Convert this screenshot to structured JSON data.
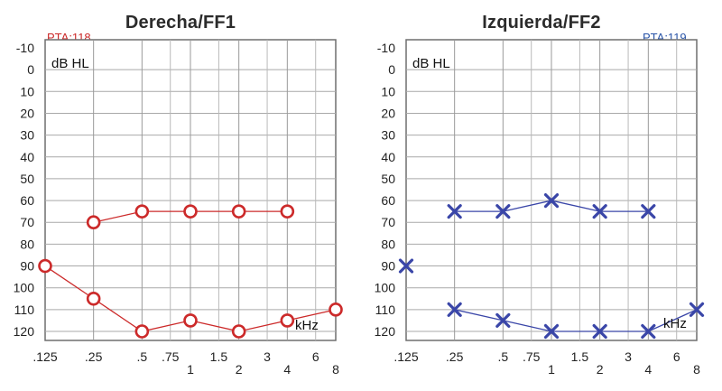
{
  "chart_data": [
    {
      "type": "line",
      "title": "Derecha/FF1",
      "pta_label": "PTA:118",
      "ylabel": "dB HL",
      "xlabel": "kHz",
      "accent": "#cc2a2a",
      "marker": "circle",
      "ylim": [
        -10,
        120
      ],
      "y_ticks": [
        "-10",
        "0",
        "10",
        "20",
        "30",
        "40",
        "50",
        "60",
        "70",
        "80",
        "90",
        "100",
        "110",
        "120"
      ],
      "x_ticks": [
        {
          "label": ".125",
          "row": 1
        },
        {
          "label": ".25",
          "row": 1
        },
        {
          "label": ".5",
          "row": 1
        },
        {
          "label": ".75",
          "row": 1
        },
        {
          "label": "1",
          "row": 2
        },
        {
          "label": "1.5",
          "row": 1
        },
        {
          "label": "2",
          "row": 2
        },
        {
          "label": "3",
          "row": 1
        },
        {
          "label": "4",
          "row": 2
        },
        {
          "label": "6",
          "row": 1
        },
        {
          "label": "8",
          "row": 2
        }
      ],
      "series": [
        {
          "x": [
            0.25,
            0.5,
            1,
            2,
            4
          ],
          "y": [
            70,
            65,
            65,
            65,
            65
          ]
        },
        {
          "x": [
            0.125,
            0.25,
            0.5,
            1,
            2,
            4,
            8
          ],
          "y": [
            90,
            105,
            120,
            115,
            120,
            115,
            110
          ]
        }
      ]
    },
    {
      "type": "line",
      "title": "Izquierda/FF2",
      "pta_label": "PTA:119",
      "ylabel": "dB HL",
      "xlabel": "kHz",
      "accent": "#3a46a8",
      "marker": "x",
      "ylim": [
        -10,
        120
      ],
      "y_ticks": [
        "-10",
        "0",
        "10",
        "20",
        "30",
        "40",
        "50",
        "60",
        "70",
        "80",
        "90",
        "100",
        "110",
        "120"
      ],
      "x_ticks": [
        {
          "label": ".125",
          "row": 1
        },
        {
          "label": ".25",
          "row": 1
        },
        {
          "label": ".5",
          "row": 1
        },
        {
          "label": ".75",
          "row": 1
        },
        {
          "label": "1",
          "row": 2
        },
        {
          "label": "1.5",
          "row": 1
        },
        {
          "label": "2",
          "row": 2
        },
        {
          "label": "3",
          "row": 1
        },
        {
          "label": "4",
          "row": 2
        },
        {
          "label": "6",
          "row": 1
        },
        {
          "label": "8",
          "row": 2
        }
      ],
      "series": [
        {
          "x": [
            0.25,
            0.5,
            1,
            2,
            4
          ],
          "y": [
            65,
            65,
            60,
            65,
            65
          ]
        },
        {
          "x": [
            0.125
          ],
          "y": [
            90
          ]
        },
        {
          "x": [
            0.25,
            0.5,
            1,
            2,
            4,
            8
          ],
          "y": [
            110,
            115,
            120,
            120,
            120,
            110
          ]
        }
      ]
    }
  ]
}
